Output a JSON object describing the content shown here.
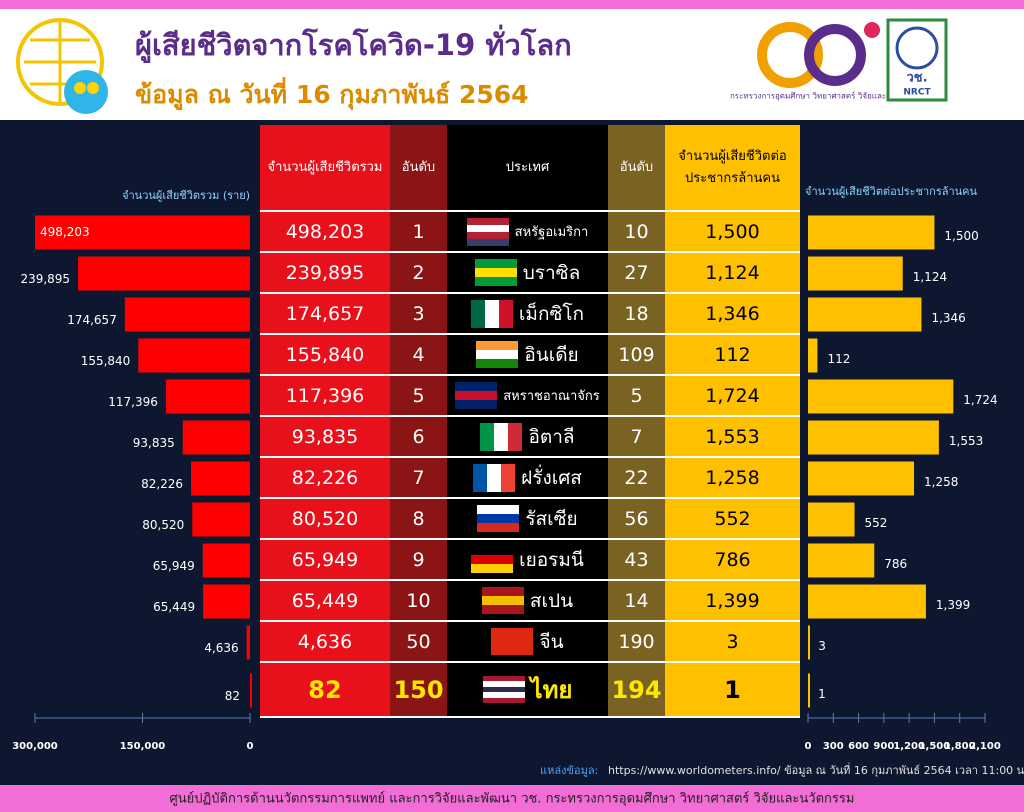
{
  "header": {
    "title": "ผู้เสียชีวิตจากโรคโควิด-19 ทั่วโลก",
    "subtitle": "ข้อมูล ณ วันที่ 16 กุมภาพันธ์ 2564",
    "ministry": "กระทรวงการอุดมศึกษา วิทยาศาสตร์ วิจัยและนวัตกรรม",
    "nrct_th": "วช.",
    "nrct_en": "NRCT"
  },
  "chart_data": [
    {
      "type": "bar",
      "orientation": "horizontal",
      "xlabel": "จำนวนผู้เสียชีวิตรวม (ราย)",
      "values": [
        498203,
        239895,
        174657,
        155840,
        117396,
        93835,
        82226,
        80520,
        65949,
        65449,
        4636,
        82
      ],
      "value_labels": [
        "498,203",
        "239,895",
        "174,657",
        "155,840",
        "117,396",
        "93,835",
        "82,226",
        "80,520",
        "65,949",
        "65,449",
        "4,636",
        "82"
      ],
      "color": "#ff0000",
      "xlim": [
        300000,
        0
      ],
      "xticks": [
        {
          "value": 300000,
          "label": "300,000"
        },
        {
          "value": 150000,
          "label": "150,000"
        },
        0
      ]
    },
    {
      "type": "bar",
      "orientation": "horizontal",
      "xlabel": "จำนวนผู้เสียชีวิตต่อประชากรล้านคน",
      "values": [
        1500,
        1124,
        1346,
        112,
        1724,
        1553,
        1258,
        552,
        786,
        1399,
        3,
        1
      ],
      "value_labels": [
        "1,500",
        "1,124",
        "1,346",
        "112",
        "1,724",
        "1,553",
        "1,258",
        "552",
        "786",
        "1,399",
        "3",
        "1"
      ],
      "color": "#ffc000",
      "xlim": [
        0,
        2100
      ],
      "xticks": [
        0,
        300,
        600,
        900,
        {
          "value": 1200,
          "label": "1,200"
        },
        {
          "value": 1500,
          "label": "1,500"
        },
        {
          "value": 1800,
          "label": "1,800"
        },
        {
          "value": 2100,
          "label": "2,100"
        }
      ]
    }
  ],
  "table": {
    "headers": [
      "จำนวนผู้เสียชีวิตรวม",
      "อันดับ",
      "ประเทศ",
      "อันดับ",
      "จำนวนผู้เสียชีวิตต่อประชากรล้านคน"
    ],
    "rows": [
      {
        "rank": 1,
        "country": "สหรัฐอเมริกา",
        "rank_per_million": 10
      },
      {
        "rank": 2,
        "country": "บราซิล",
        "rank_per_million": 27
      },
      {
        "rank": 3,
        "country": "เม็กซิโก",
        "rank_per_million": 18
      },
      {
        "rank": 4,
        "country": "อินเดีย",
        "rank_per_million": 109
      },
      {
        "rank": 5,
        "country": "สหราชอาณาจักร",
        "rank_per_million": 5
      },
      {
        "rank": 6,
        "country": "อิตาลี",
        "rank_per_million": 7
      },
      {
        "rank": 7,
        "country": "ฝรั่งเศส",
        "rank_per_million": 22
      },
      {
        "rank": 8,
        "country": "รัสเซีย",
        "rank_per_million": 56
      },
      {
        "rank": 9,
        "country": "เยอรมนี",
        "rank_per_million": 43
      },
      {
        "rank": 10,
        "country": "สเปน",
        "rank_per_million": 14
      },
      {
        "rank": 50,
        "country": "จีน",
        "rank_per_million": 190
      },
      {
        "rank": 150,
        "country": "ไทย",
        "rank_per_million": 194
      }
    ]
  },
  "source": {
    "label": "แหล่งข้อมูล:",
    "text": "https://www.worldometers.info/ ข้อมูล ณ วันที่ 16 กุมภาพันธ์ 2564 เวลา 11:00 น."
  },
  "footer": "ศูนย์ปฏิบัติการด้านนวัตกรรมการแพทย์ และการวิจัยและพัฒนา วช.   กระทรวงการอุดมศึกษา วิทยาศาสตร์ วิจัยและนวัตกรรม"
}
